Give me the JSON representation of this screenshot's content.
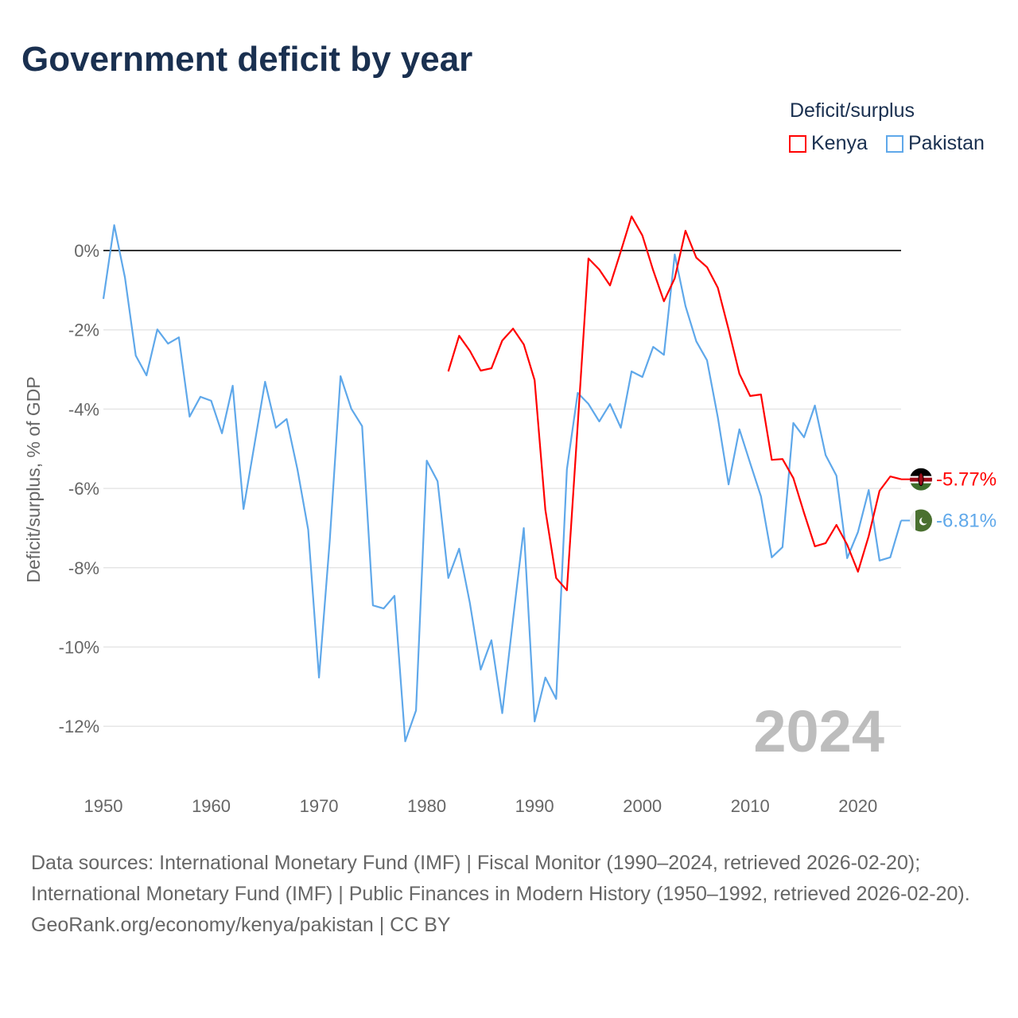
{
  "title": "Government deficit by year",
  "legend": {
    "title": "Deficit/surplus",
    "items": [
      {
        "label": "Kenya",
        "color": "#ff0000"
      },
      {
        "label": "Pakistan",
        "color": "#5fa8ea"
      }
    ]
  },
  "chart_data": {
    "type": "line",
    "title": "Government deficit by year",
    "xlabel": "",
    "ylabel": "Deficit/surplus, % of GDP",
    "xlim": [
      1950,
      2024
    ],
    "ylim": [
      -13,
      1
    ],
    "x_ticks": [
      1950,
      1960,
      1970,
      1980,
      1990,
      2000,
      2010,
      2020
    ],
    "x_tick_labels": [
      "1950",
      "1960",
      "1970",
      "1980",
      "1990",
      "2000",
      "2010",
      "2020"
    ],
    "y_ticks": [
      0,
      -2,
      -4,
      -6,
      -8,
      -10,
      -12
    ],
    "y_tick_labels": [
      "0%",
      "-2%",
      "-4%",
      "-6%",
      "-8%",
      "-10%",
      "-12%"
    ],
    "grid": true,
    "legend_position": "top-right",
    "year_label": "2024",
    "series": [
      {
        "name": "Kenya",
        "color": "#ff0000",
        "end_label": "-5.77%",
        "x": [
          1982,
          1983,
          1984,
          1985,
          1986,
          1987,
          1988,
          1989,
          1990,
          1991,
          1992,
          1993,
          1994,
          1995,
          1996,
          1997,
          1998,
          1999,
          2000,
          2001,
          2002,
          2003,
          2004,
          2005,
          2006,
          2007,
          2008,
          2009,
          2010,
          2011,
          2012,
          2013,
          2014,
          2015,
          2016,
          2017,
          2018,
          2019,
          2020,
          2021,
          2022,
          2023,
          2024
        ],
        "values": [
          -3.05,
          -2.15,
          -2.53,
          -3.03,
          -2.97,
          -2.27,
          -1.97,
          -2.37,
          -3.27,
          -6.54,
          -8.26,
          -8.57,
          -4.4,
          -0.2,
          -0.48,
          -0.88,
          -0.02,
          0.86,
          0.38,
          -0.5,
          -1.28,
          -0.7,
          0.5,
          -0.18,
          -0.42,
          -0.94,
          -1.99,
          -3.11,
          -3.67,
          -3.63,
          -5.28,
          -5.26,
          -5.74,
          -6.62,
          -7.46,
          -7.38,
          -6.92,
          -7.42,
          -8.1,
          -7.2,
          -6.06,
          -5.7,
          -5.77
        ]
      },
      {
        "name": "Pakistan",
        "color": "#5fa8ea",
        "end_label": "-6.81%",
        "x": [
          1950,
          1951,
          1952,
          1953,
          1954,
          1955,
          1956,
          1957,
          1958,
          1959,
          1960,
          1961,
          1962,
          1963,
          1964,
          1965,
          1966,
          1967,
          1968,
          1969,
          1970,
          1971,
          1972,
          1973,
          1974,
          1975,
          1976,
          1977,
          1978,
          1979,
          1980,
          1981,
          1982,
          1983,
          1984,
          1985,
          1986,
          1987,
          1988,
          1989,
          1990,
          1991,
          1992,
          1993,
          1994,
          1995,
          1996,
          1997,
          1998,
          1999,
          2000,
          2001,
          2002,
          2003,
          2004,
          2005,
          2006,
          2007,
          2008,
          2009,
          2010,
          2011,
          2012,
          2013,
          2014,
          2015,
          2016,
          2017,
          2018,
          2019,
          2020,
          2021,
          2022,
          2023,
          2024
        ],
        "values": [
          -1.22,
          0.64,
          -0.68,
          -2.65,
          -3.15,
          -1.99,
          -2.35,
          -2.19,
          -4.19,
          -3.69,
          -3.79,
          -4.61,
          -3.41,
          -6.52,
          -4.91,
          -3.31,
          -4.47,
          -4.25,
          -5.52,
          -7.04,
          -10.77,
          -7.32,
          -3.17,
          -3.99,
          -4.43,
          -8.95,
          -9.03,
          -8.71,
          -12.38,
          -11.6,
          -5.3,
          -5.82,
          -8.26,
          -7.52,
          -8.89,
          -10.57,
          -9.83,
          -11.67,
          -9.3,
          -7.0,
          -11.88,
          -10.77,
          -11.31,
          -5.52,
          -3.59,
          -3.87,
          -4.31,
          -3.87,
          -4.47,
          -3.05,
          -3.19,
          -2.43,
          -2.63,
          -0.1,
          -1.4,
          -2.29,
          -2.77,
          -4.21,
          -5.9,
          -4.51,
          -5.36,
          -6.2,
          -7.74,
          -7.48,
          -4.35,
          -4.71,
          -3.91,
          -5.16,
          -5.68,
          -7.76,
          -7.1,
          -6.04,
          -7.82,
          -7.74,
          -6.81
        ]
      }
    ]
  },
  "footer": {
    "sources": "Data sources: International Monetary Fund (IMF) | Fiscal Monitor (1990–2024, retrieved 2026-02-20); International Monetary Fund (IMF) | Public Finances in Modern History (1950–1992, retrieved 2026-02-20).",
    "credit": "GeoRank.org/economy/kenya/pakistan | CC BY"
  }
}
